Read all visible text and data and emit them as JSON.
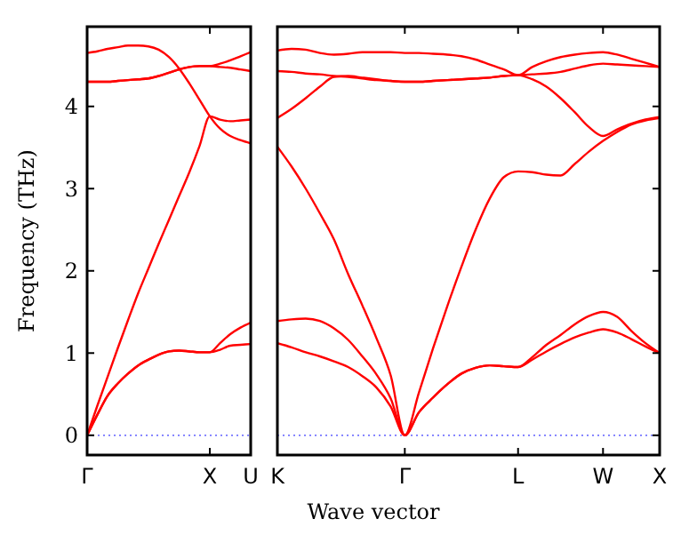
{
  "chart_data": [
    {
      "type": "line",
      "ylabel": "Frequency (THz)",
      "ylim": [
        -0.24,
        4.97
      ],
      "categories": [
        "Γ",
        null,
        null,
        null,
        null,
        null,
        null,
        null,
        null,
        null,
        null,
        null,
        "X",
        null,
        null,
        null,
        "U"
      ],
      "yticks": [
        0,
        1,
        2,
        3,
        4
      ],
      "grid": false,
      "marker": "none",
      "line_style": "solid",
      "ref_lines": [
        {
          "axis": "y",
          "value": 0,
          "color": "#4040ff",
          "line_style": "dotted"
        }
      ],
      "series": [
        {
          "color": "#ff0000",
          "values": [
            0,
            0.25,
            0.48,
            0.63,
            0.75,
            0.85,
            0.92,
            0.98,
            1.02,
            1.03,
            1.02,
            1.01,
            1.01,
            1.04,
            1.09,
            1.1,
            1.11
          ]
        },
        {
          "color": "#ff0000",
          "values": [
            0,
            0.25,
            0.48,
            0.63,
            0.75,
            0.85,
            0.92,
            0.98,
            1.02,
            1.03,
            1.02,
            1.01,
            1.01,
            1.12,
            1.23,
            1.31,
            1.37
          ]
        },
        {
          "color": "#ff0000",
          "values": [
            0,
            0.36,
            0.71,
            1.06,
            1.4,
            1.73,
            2.03,
            2.33,
            2.62,
            2.91,
            3.2,
            3.52,
            3.88,
            3.84,
            3.82,
            3.83,
            3.84
          ]
        },
        {
          "color": "#ff0000",
          "values": [
            4.65,
            4.67,
            4.7,
            4.72,
            4.74,
            4.74,
            4.73,
            4.69,
            4.6,
            4.46,
            4.28,
            4.08,
            3.88,
            3.73,
            3.64,
            3.59,
            3.55
          ]
        },
        {
          "color": "#ff0000",
          "values": [
            4.3,
            4.3,
            4.3,
            4.31,
            4.32,
            4.33,
            4.34,
            4.37,
            4.41,
            4.45,
            4.48,
            4.49,
            4.49,
            4.48,
            4.47,
            4.45,
            4.43
          ]
        },
        {
          "color": "#ff0000",
          "values": [
            4.3,
            4.3,
            4.3,
            4.31,
            4.32,
            4.33,
            4.34,
            4.37,
            4.41,
            4.45,
            4.48,
            4.49,
            4.49,
            4.52,
            4.56,
            4.61,
            4.66
          ]
        }
      ]
    },
    {
      "type": "line",
      "xlabel": "Wave vector",
      "ylim": [
        -0.24,
        4.97
      ],
      "categories": [
        "K",
        null,
        null,
        null,
        null,
        null,
        null,
        null,
        null,
        "Γ",
        null,
        null,
        null,
        null,
        null,
        null,
        null,
        "L",
        null,
        null,
        null,
        null,
        null,
        "W",
        null,
        null,
        null,
        "X"
      ],
      "yticks": [
        0,
        1,
        2,
        3,
        4
      ],
      "tick_labels": "x",
      "grid": false,
      "marker": "none",
      "line_style": "solid",
      "ref_lines": [
        {
          "axis": "y",
          "value": 0,
          "color": "#4040ff",
          "line_style": "dotted"
        }
      ],
      "series": [
        {
          "color": "#ff0000",
          "values": [
            1.12,
            1.07,
            1.01,
            0.96,
            0.9,
            0.83,
            0.72,
            0.58,
            0.35,
            0,
            0.28,
            0.46,
            0.62,
            0.75,
            0.82,
            0.85,
            0.84,
            0.83,
            0.92,
            1.02,
            1.11,
            1.19,
            1.25,
            1.29,
            1.25,
            1.17,
            1.08,
            1.0
          ]
        },
        {
          "color": "#ff0000",
          "values": [
            1.39,
            1.41,
            1.42,
            1.39,
            1.3,
            1.16,
            0.96,
            0.74,
            0.45,
            0,
            0.28,
            0.46,
            0.62,
            0.75,
            0.82,
            0.85,
            0.84,
            0.83,
            0.95,
            1.1,
            1.22,
            1.35,
            1.45,
            1.5,
            1.44,
            1.27,
            1.12,
            1.0
          ]
        },
        {
          "color": "#ff0000",
          "values": [
            3.51,
            3.27,
            3.0,
            2.7,
            2.38,
            1.96,
            1.58,
            1.18,
            0.73,
            0,
            0.52,
            1.06,
            1.57,
            2.05,
            2.5,
            2.88,
            3.14,
            3.21,
            3.2,
            3.17,
            3.16,
            3.3,
            3.45,
            3.58,
            3.69,
            3.78,
            3.83,
            3.86
          ]
        },
        {
          "color": "#ff0000",
          "values": [
            3.86,
            3.97,
            4.1,
            4.24,
            4.36,
            4.37,
            4.35,
            4.33,
            4.31,
            4.3,
            4.3,
            4.31,
            4.32,
            4.33,
            4.34,
            4.35,
            4.37,
            4.38,
            4.33,
            4.24,
            4.1,
            3.93,
            3.75,
            3.64,
            3.72,
            3.79,
            3.84,
            3.87
          ]
        },
        {
          "color": "#ff0000",
          "values": [
            4.43,
            4.42,
            4.4,
            4.39,
            4.37,
            4.36,
            4.34,
            4.32,
            4.31,
            4.3,
            4.3,
            4.31,
            4.32,
            4.33,
            4.34,
            4.35,
            4.37,
            4.38,
            4.39,
            4.4,
            4.42,
            4.46,
            4.5,
            4.52,
            4.51,
            4.5,
            4.49,
            4.48
          ]
        },
        {
          "color": "#ff0000",
          "values": [
            4.68,
            4.7,
            4.69,
            4.65,
            4.63,
            4.64,
            4.66,
            4.66,
            4.66,
            4.65,
            4.65,
            4.64,
            4.63,
            4.61,
            4.57,
            4.51,
            4.45,
            4.38,
            4.48,
            4.55,
            4.6,
            4.63,
            4.65,
            4.66,
            4.63,
            4.58,
            4.53,
            4.48
          ]
        }
      ]
    }
  ]
}
